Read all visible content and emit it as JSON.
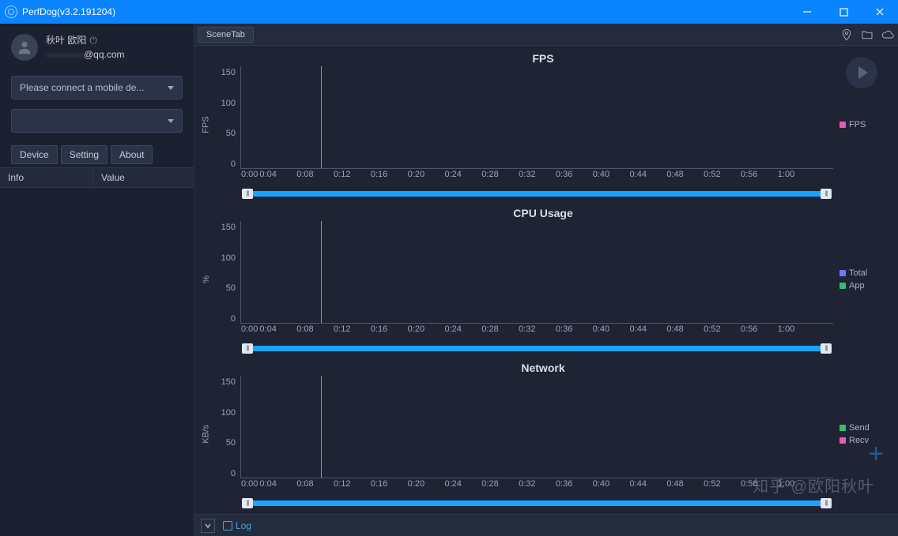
{
  "window": {
    "title": "PerfDog(v3.2.191204)"
  },
  "user": {
    "name": "秋叶 欧阳",
    "email": "@qq.com",
    "email_blur": "————"
  },
  "sidebar": {
    "device_placeholder": "Please connect a mobile de...",
    "app_placeholder": "",
    "tabs": {
      "device": "Device",
      "setting": "Setting",
      "about": "About"
    },
    "info_cols": {
      "info": "Info",
      "value": "Value"
    }
  },
  "toolbar": {
    "scene_tab": "SceneTab"
  },
  "charts": {
    "xticks": [
      "0:00",
      "0:04",
      "0:08",
      "0:12",
      "0:16",
      "0:20",
      "0:24",
      "0:28",
      "0:32",
      "0:36",
      "0:40",
      "0:44",
      "0:48",
      "0:52",
      "0:56",
      "1:00"
    ],
    "yticks": [
      "150",
      "100",
      "50",
      "0"
    ],
    "playhead_pct": 13.5,
    "fps": {
      "title": "FPS",
      "ylabel": "FPS",
      "legend": [
        {
          "label": "FPS",
          "color": "#e957b5"
        }
      ]
    },
    "cpu": {
      "title": "CPU Usage",
      "ylabel": "%",
      "legend": [
        {
          "label": "Total",
          "color": "#6b7cff"
        },
        {
          "label": "App",
          "color": "#33c070"
        }
      ]
    },
    "net": {
      "title": "Network",
      "ylabel": "KB/s",
      "legend": [
        {
          "label": "Send",
          "color": "#33c070"
        },
        {
          "label": "Recv",
          "color": "#e957b5"
        }
      ]
    }
  },
  "bottom": {
    "log_label": "Log"
  },
  "watermark": "知乎 @欧阳秋叶",
  "colors": {
    "bg": "#1e2433",
    "panel": "#242b3d",
    "accent": "#0a84ff",
    "scrub": "#1aa3ff",
    "axis": "#4a5470",
    "text": "#c6cbd7",
    "muted": "#9aa3b8"
  }
}
